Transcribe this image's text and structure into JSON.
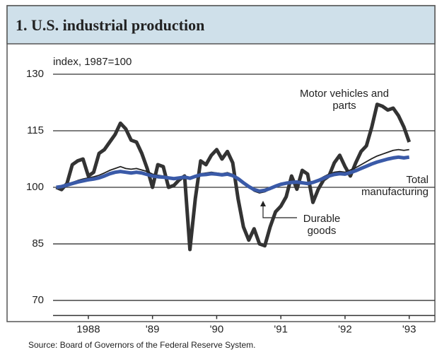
{
  "chart_data": {
    "type": "line",
    "title": "1. U.S. industrial production",
    "y_label": "index, 1987=100",
    "source": "Source: Board of Governors of the Federal Reserve System.",
    "xlim": [
      1987.95,
      1993.9
    ],
    "xticks": [
      {
        "value": 1988.5,
        "label": "1988"
      },
      {
        "value": 1989.5,
        "label": "'89"
      },
      {
        "value": 1990.5,
        "label": "'90"
      },
      {
        "value": 1991.5,
        "label": "'91"
      },
      {
        "value": 1992.5,
        "label": "'92"
      },
      {
        "value": 1993.5,
        "label": "'93"
      }
    ],
    "ylim": [
      66,
      132
    ],
    "yticks": [
      70,
      85,
      100,
      115,
      130
    ],
    "grid": true,
    "x": [
      1988.0,
      1988.083,
      1988.167,
      1988.25,
      1988.333,
      1988.417,
      1988.5,
      1988.583,
      1988.667,
      1988.75,
      1988.833,
      1988.917,
      1989.0,
      1989.083,
      1989.167,
      1989.25,
      1989.333,
      1989.417,
      1989.5,
      1989.583,
      1989.667,
      1989.75,
      1989.833,
      1989.917,
      1990.0,
      1990.083,
      1990.167,
      1990.25,
      1990.333,
      1990.417,
      1990.5,
      1990.583,
      1990.667,
      1990.75,
      1990.833,
      1990.917,
      1991.0,
      1991.083,
      1991.167,
      1991.25,
      1991.333,
      1991.417,
      1991.5,
      1991.583,
      1991.667,
      1991.75,
      1991.833,
      1991.917,
      1992.0,
      1992.083,
      1992.167,
      1992.25,
      1992.333,
      1992.417,
      1992.5,
      1992.583,
      1992.667,
      1992.75,
      1992.833,
      1992.917,
      1993.0,
      1993.083,
      1993.167,
      1993.25,
      1993.333,
      1993.417,
      1993.5
    ],
    "series": [
      {
        "name": "Motor vehicles and parts",
        "color": "#333333",
        "width": 5,
        "values": [
          100,
          99.4,
          101,
          106,
          107,
          107.5,
          103,
          104,
          109,
          110,
          112,
          114,
          117,
          115.5,
          112.5,
          112,
          109,
          105,
          100,
          106,
          105.5,
          100,
          100.5,
          102,
          103,
          83.5,
          97,
          107,
          106,
          108.5,
          110,
          107.5,
          109.5,
          106.5,
          97,
          89.5,
          86,
          89,
          85,
          84.5,
          89.5,
          93.5,
          95,
          97.5,
          103,
          99.5,
          104.5,
          103.5,
          96,
          99.5,
          102,
          103,
          106.5,
          108.5,
          105.5,
          103,
          106.5,
          109.5,
          111,
          116,
          122,
          121.5,
          120.5,
          121,
          119,
          116,
          112
        ]
      },
      {
        "name": "Durable goods",
        "color": "#222222",
        "width": 1.8,
        "values": [
          100,
          100.3,
          100.8,
          101.3,
          101.8,
          102.2,
          102.5,
          102.8,
          103.2,
          103.8,
          104.5,
          105,
          105.5,
          105,
          104.8,
          105,
          104.6,
          104.2,
          103.5,
          103.2,
          103,
          102.6,
          102.4,
          102.6,
          102.8,
          102.5,
          103,
          103.6,
          103.8,
          104,
          103.8,
          103.6,
          103.9,
          103.4,
          102.5,
          101.2,
          100,
          99,
          98.5,
          98.8,
          99.5,
          100.2,
          100.8,
          101.3,
          101.5,
          101.6,
          101.4,
          101.2,
          101.5,
          102,
          102.8,
          103.5,
          104,
          104.2,
          104,
          104.6,
          105.2,
          106,
          106.8,
          107.6,
          108.3,
          108.8,
          109.3,
          109.8,
          110,
          109.8,
          110
        ]
      },
      {
        "name": "Total manufacturing",
        "color": "#3a5aa8",
        "width": 5,
        "values": [
          100,
          100.2,
          100.6,
          101,
          101.4,
          101.7,
          102,
          102.2,
          102.5,
          103,
          103.6,
          104,
          104.2,
          104,
          103.8,
          104,
          103.8,
          103.4,
          103,
          102.8,
          102.7,
          102.5,
          102.3,
          102.5,
          102.7,
          102.4,
          102.9,
          103.3,
          103.4,
          103.6,
          103.5,
          103.3,
          103.5,
          103.1,
          102.3,
          101.2,
          100.2,
          99.4,
          99,
          99.2,
          99.7,
          100.3,
          100.8,
          101.1,
          101.3,
          101.4,
          101.2,
          101,
          101.3,
          101.8,
          102.4,
          103,
          103.4,
          103.6,
          103.5,
          103.9,
          104.4,
          105,
          105.6,
          106.2,
          106.7,
          107.1,
          107.5,
          107.8,
          108,
          107.8,
          108
        ]
      }
    ]
  }
}
